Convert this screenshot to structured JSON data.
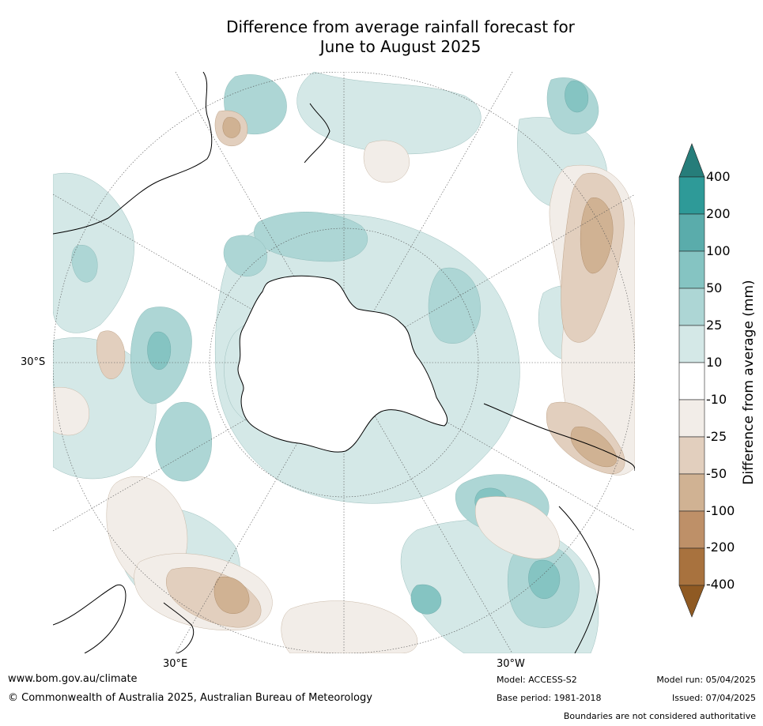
{
  "title_line1": "Difference from average rainfall forecast for",
  "title_line2": "June to August 2025",
  "map": {
    "projection": "south-polar-stereographic",
    "lon_labels": [
      "30°E",
      "30°W"
    ],
    "lat_labels": [
      "30°S"
    ]
  },
  "colorbar": {
    "title": "Difference from average (mm)",
    "extend": "both",
    "levels": [
      "400",
      "200",
      "100",
      "50",
      "25",
      "10",
      "-10",
      "-25",
      "-50",
      "-100",
      "-200",
      "-400"
    ],
    "colors": {
      "above_400": "#267d7a",
      "200_400": "#2e9a98",
      "100_200": "#5aacab",
      "50_100": "#85c4c2",
      "25_50": "#add6d5",
      "10_25": "#d4e8e7",
      "neutral": "#ffffff",
      "m10_m25": "#f2ede8",
      "m25_m50": "#e2cfbe",
      "m50_m100": "#d0b293",
      "m100_m200": "#be9068",
      "m200_m400": "#a8723e",
      "below_m400": "#8f5a23"
    }
  },
  "footer": {
    "website": "www.bom.gov.au/climate",
    "copyright": "© Commonwealth of Australia 2025, Australian Bureau of Meteorology",
    "model": "Model: ACCESS-S2",
    "base_period": "Base period: 1981-2018",
    "model_run": "Model run: 05/04/2025",
    "issued": "Issued: 07/04/2025",
    "disclaimer": "Boundaries are not considered authoritative"
  }
}
